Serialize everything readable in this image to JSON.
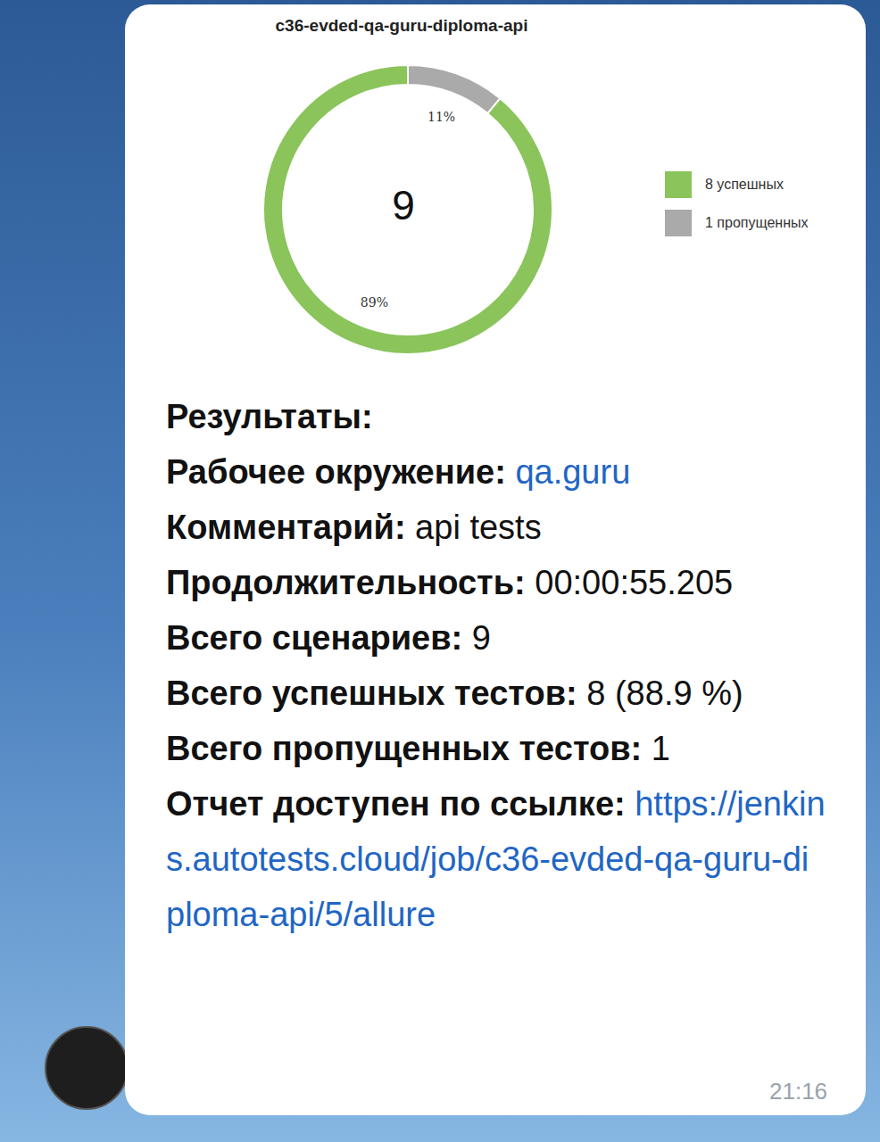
{
  "chart_data": {
    "type": "pie",
    "title": "c36-evded-qa-guru-diploma-api",
    "categories": [
      "8 успешных",
      "1 пропущенных"
    ],
    "values": [
      89,
      11
    ],
    "value_labels": [
      "89%",
      "11%"
    ],
    "colors": [
      "#8ac45b",
      "#aaaaaa"
    ],
    "data_labels": true,
    "legend": "right",
    "total": 9
  },
  "message": {
    "heading": "Результаты:",
    "fields": [
      {
        "label": "Рабочее окружение:",
        "value": "qa.guru",
        "link": true
      },
      {
        "label": "Комментарий:",
        "value": "api tests"
      },
      {
        "label": "Продолжительность:",
        "value": "00:00:55.205"
      },
      {
        "label": "Всего сценариев:",
        "value": "9"
      },
      {
        "label": "Всего успешных тестов:",
        "value": "8 (88.9 %)"
      },
      {
        "label": "Всего пропущенных тестов:",
        "value": "1"
      },
      {
        "label": "Отчет доступен по ссылке:",
        "value": "https://jenkins.autotests.cloud/job/c36-evded-qa-guru-diploma-api/5/allure",
        "link": true
      }
    ],
    "time": "21:16"
  }
}
